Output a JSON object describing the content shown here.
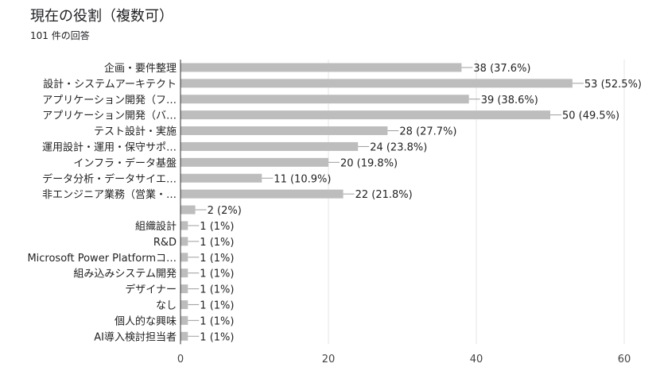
{
  "header": {
    "title": "現在の役割（複数可）",
    "response_count": "101 件の回答"
  },
  "chart_data": {
    "type": "bar",
    "orientation": "horizontal",
    "title": "現在の役割（複数可）",
    "xlim": [
      0,
      60
    ],
    "ticks": [
      0,
      20,
      40,
      60
    ],
    "grid": true,
    "color": "#bdbdbd",
    "categories": [
      "企画・要件整理",
      "設計・システムアーキテクト",
      "アプリケーション開発（フ…",
      "アプリケーション開発（バ…",
      "テスト設計・実施",
      "運用設計・運用・保守サポ…",
      "インフラ・データ基盤",
      "データ分析・データサイエ…",
      "非エンジニア業務（営業・…",
      "",
      "組織設計",
      "R&D",
      "Microsoft Power Platformコ…",
      "組み込みシステム開発",
      "デザイナー",
      "なし",
      "個人的な興味",
      "AI導入検討担当者"
    ],
    "values": [
      38,
      53,
      39,
      50,
      28,
      24,
      20,
      11,
      22,
      2,
      1,
      1,
      1,
      1,
      1,
      1,
      1,
      1
    ],
    "value_labels": [
      "38 (37.6%)",
      "53 (52.5%)",
      "39 (38.6%)",
      "50 (49.5%)",
      "28 (27.7%)",
      "24 (23.8%)",
      "20 (19.8%)",
      "11 (10.9%)",
      "22 (21.8%)",
      "2 (2%)",
      "1 (1%)",
      "1 (1%)",
      "1 (1%)",
      "1 (1%)",
      "1 (1%)",
      "1 (1%)",
      "1 (1%)",
      "1 (1%)"
    ]
  }
}
